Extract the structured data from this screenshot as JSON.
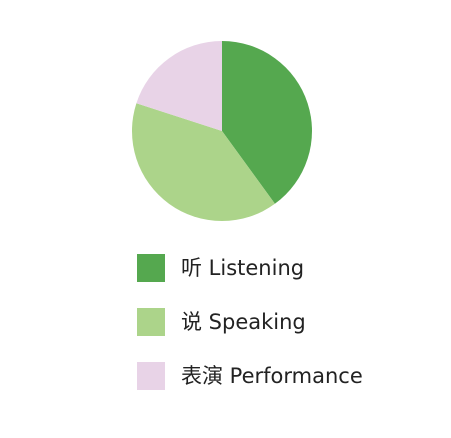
{
  "chart_data": {
    "type": "pie",
    "categories": [
      "听 Listening",
      "说 Speaking",
      "表演 Performance"
    ],
    "values": [
      40,
      40,
      20
    ],
    "colors": [
      "#55a84f",
      "#acd48a",
      "#e8d3e7"
    ],
    "start_angle": "12 o'clock",
    "direction": "clockwise",
    "legend": "below"
  }
}
